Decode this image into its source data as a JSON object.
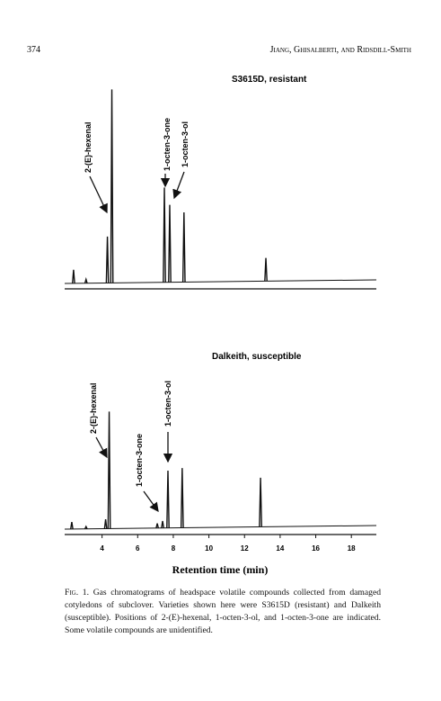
{
  "header": {
    "page_number": "374",
    "running_head": "Jiang, Ghisalberti, and Ridsdill-Smith"
  },
  "chart_data": [
    {
      "type": "chromatogram",
      "title": "S3615D, resistant",
      "x": [
        2.4,
        3.1,
        4.3,
        4.55,
        7.5,
        7.8,
        8.6,
        13.2
      ],
      "values": [
        7,
        2,
        24,
        100,
        49,
        40,
        36,
        12
      ],
      "xlim": [
        1.9,
        19.1
      ],
      "ylim": [
        0,
        100
      ],
      "color": "#111111",
      "annotations": [
        "2-(E)-hexenal",
        "1-octen-3-one",
        "1-octen-3-ol"
      ]
    },
    {
      "type": "chromatogram",
      "title": "Dalkeith, susceptible",
      "x": [
        2.3,
        3.1,
        4.2,
        4.4,
        7.1,
        7.4,
        7.7,
        8.5,
        12.9
      ],
      "values": [
        6,
        2,
        8,
        100,
        4,
        6,
        49,
        51,
        42
      ],
      "xlim": [
        1.9,
        19.1
      ],
      "ylim": [
        0,
        100
      ],
      "color": "#111111",
      "xticks": [
        4,
        6,
        8,
        10,
        12,
        14,
        16,
        18
      ],
      "xlabel": "Retention time (min)",
      "annotations": [
        "2-(E)-hexenal",
        "1-octen-3-one",
        "1-octen-3-ol"
      ]
    }
  ],
  "caption": {
    "label": "Fig. 1.",
    "text": "Gas chromatograms of headspace volatile compounds collected from damaged cotyledons of subclover. Varieties shown here were S3615D (resistant) and Dalkeith (susceptible). Positions of 2-(E)-hexenal, 1-octen-3-ol, and 1-octen-3-one are indicated. Some volatile compounds are unidentified."
  }
}
